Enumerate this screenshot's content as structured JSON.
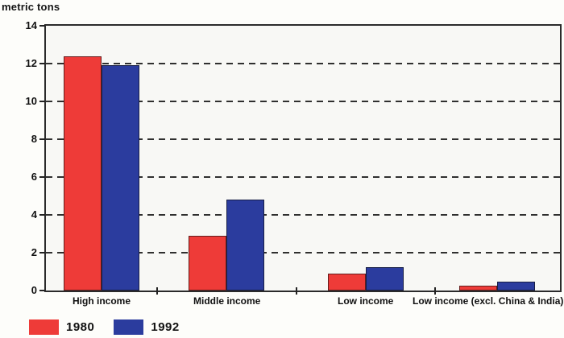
{
  "chart_data": {
    "type": "bar",
    "title": "",
    "ylabel": "metric tons",
    "xlabel": "",
    "categories": [
      "High income",
      "Middle income",
      "Low income",
      "Low income (excl. China & India)"
    ],
    "series": [
      {
        "name": "1980",
        "color": "#ee3b38",
        "values": [
          12.4,
          2.9,
          0.9,
          0.25
        ]
      },
      {
        "name": "1992",
        "color": "#2b3c9e",
        "values": [
          11.9,
          4.8,
          1.25,
          0.45
        ]
      }
    ],
    "ylim": [
      0,
      14
    ],
    "ytick_step": 2,
    "yticks": [
      0,
      2,
      4,
      6,
      8,
      10,
      12,
      14
    ],
    "grid": "horizontal-dashed",
    "legend_position": "bottom-left",
    "axis_color": "#2b2b2b",
    "plot_background": "#f8f8f5"
  }
}
